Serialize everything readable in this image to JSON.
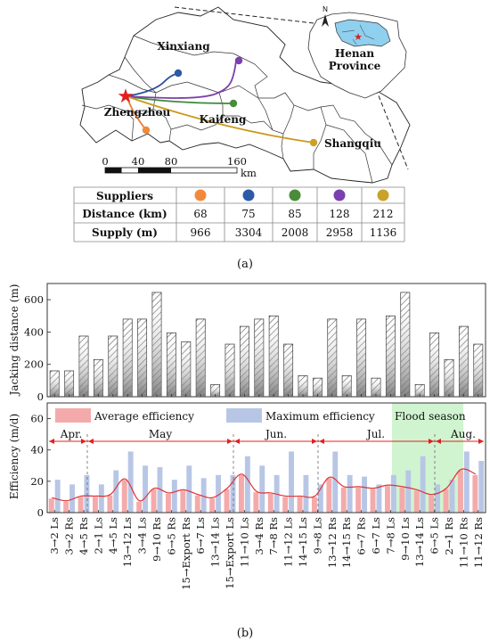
{
  "map": {
    "cities": [
      "Xinxiang",
      "Zhengzhou",
      "Kaifeng",
      "Shangqiu"
    ],
    "inset_label_1": "Henan",
    "inset_label_2": "Province",
    "north": "N",
    "scale_ticks": [
      "0",
      "40",
      "80",
      "160"
    ],
    "scale_unit": "km",
    "route_colors": [
      "#e8823a",
      "#2b4e9b",
      "#3d8a3a",
      "#7e3fa8",
      "#c99a1b"
    ]
  },
  "table": {
    "row_labels": [
      "Suppliers",
      "Distance (km)",
      "Supply (m)"
    ],
    "distance": [
      "68",
      "75",
      "85",
      "128",
      "212"
    ],
    "supply": [
      "966",
      "3304",
      "2008",
      "2958",
      "1136"
    ],
    "dot_colors": [
      "#f08a3a",
      "#2d5aa8",
      "#4a8c3a",
      "#7a3fb0",
      "#c9a227"
    ]
  },
  "caption_a": "(a)",
  "caption_b": "(b)",
  "chart_data": [
    {
      "type": "bar",
      "ylabel": "Jacking distance (m)",
      "ylim": [
        0,
        700
      ],
      "yticks": [
        "0",
        "200",
        "400",
        "600"
      ],
      "values": [
        160,
        160,
        375,
        230,
        375,
        480,
        480,
        645,
        395,
        340,
        480,
        75,
        325,
        435,
        480,
        500,
        325,
        130,
        115,
        480,
        130,
        480,
        115,
        500,
        645,
        75,
        395,
        230,
        435,
        325
      ]
    },
    {
      "type": "bar",
      "ylabel": "Efficiency (m/d)",
      "ylim": [
        0,
        70
      ],
      "yticks": [
        "0",
        "20",
        "40",
        "60"
      ],
      "legend": [
        "Average efficiency",
        "Maximum efficiency",
        "Flood season"
      ],
      "months": [
        "Apr.",
        "May",
        "Jun.",
        "Jul.",
        "Aug."
      ],
      "categories": [
        "3→2 Ls",
        "3→2 Rs",
        "4→5 Rs",
        "2→1 Ls",
        "4→5 Ls",
        "13→12 Ls",
        "3→4 Ls",
        "9→10 Rs",
        "6→5 Rs",
        "15→Export Rs",
        "6→7 Ls",
        "13→14 Ls",
        "15→Export Ls",
        "11→10 Ls",
        "3→4 Rs",
        "7→8 Rs",
        "11→12 Ls",
        "14→15 Ls",
        "9→8 Ls",
        "13→12 Rs",
        "14→15 Rs",
        "6→7 Rs",
        "6→7 Ls",
        "7→8 Ls",
        "9→10 Ls",
        "13→14 Ls",
        "6→5 Ls",
        "2→1 Rs",
        "11→10 Rs",
        "11→12 Rs"
      ],
      "series": [
        {
          "name": "Average efficiency",
          "values": [
            9,
            7,
            10,
            10,
            11,
            21,
            7,
            15,
            12,
            14,
            11,
            9,
            15,
            24,
            13,
            12,
            10,
            10,
            10,
            22,
            16,
            16,
            15,
            17,
            16,
            14,
            11,
            15,
            27,
            24
          ]
        },
        {
          "name": "Maximum efficiency",
          "values": [
            21,
            18,
            24,
            18,
            27,
            39,
            30,
            29,
            21,
            30,
            22,
            24,
            24,
            36,
            30,
            24,
            39,
            24,
            18,
            39,
            24,
            23,
            18,
            24,
            27,
            36,
            18,
            21,
            39,
            33
          ]
        }
      ]
    }
  ]
}
